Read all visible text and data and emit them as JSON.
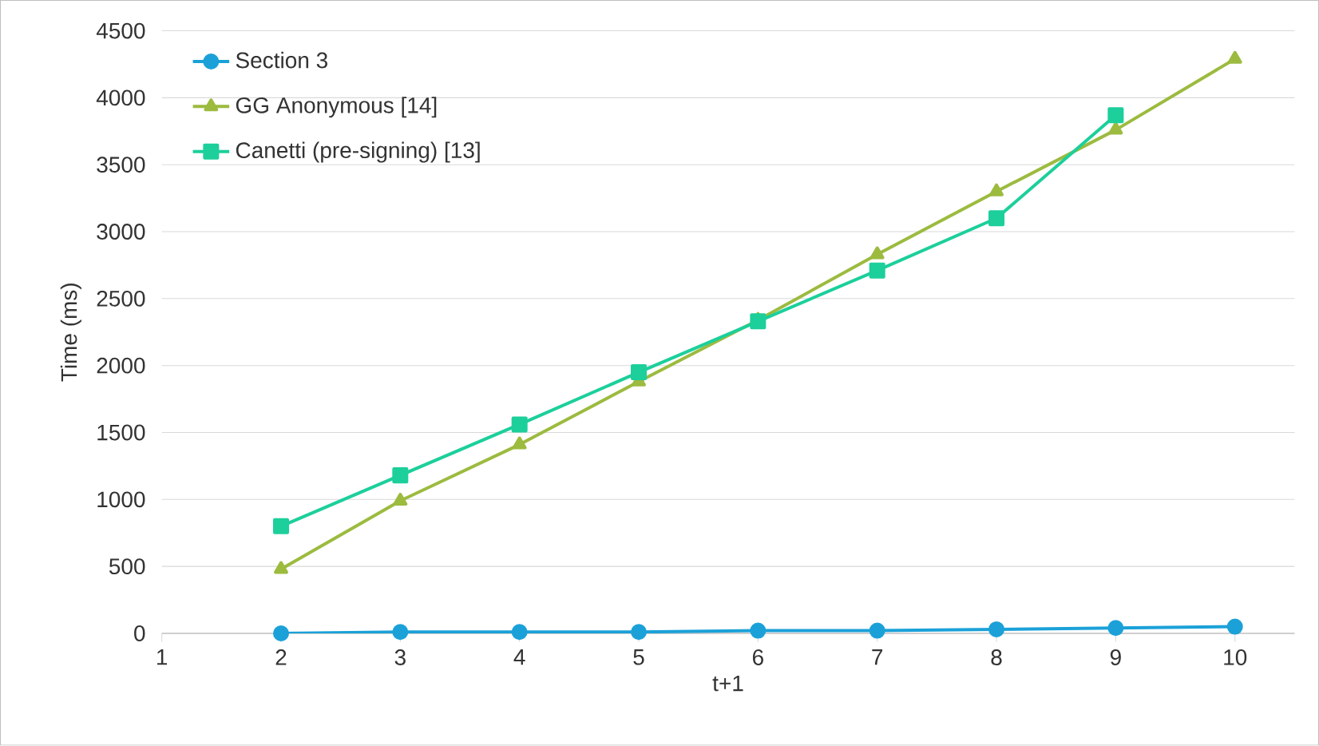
{
  "chart_data": {
    "type": "line",
    "xlabel": "t+1",
    "ylabel": "Time (ms)",
    "xlim": [
      1,
      10.5
    ],
    "xticks": [
      1,
      2,
      3,
      4,
      5,
      6,
      7,
      8,
      9,
      10
    ],
    "ylim": [
      0,
      4500
    ],
    "yticks": [
      0,
      500,
      1000,
      1500,
      2000,
      2500,
      3000,
      3500,
      4000,
      4500
    ],
    "grid": "y",
    "legend": "top left",
    "line_style": "solid",
    "series": [
      {
        "name": "Section 3",
        "color": "#1ba1d8",
        "marker": "circle",
        "x": [
          2,
          3,
          4,
          5,
          6,
          7,
          8,
          9,
          10
        ],
        "values": [
          0,
          10,
          10,
          10,
          20,
          20,
          30,
          40,
          50
        ]
      },
      {
        "name": "GG Anonymous [14]",
        "color": "#9cbb3f",
        "marker": "triangle",
        "x": [
          2,
          3,
          4,
          5,
          6,
          7,
          8,
          9,
          10
        ],
        "values": [
          480,
          990,
          1410,
          1880,
          2340,
          2830,
          3300,
          3760,
          4290
        ]
      },
      {
        "name": "Canetti (pre-signing) [13]",
        "color": "#1ccf9b",
        "marker": "square",
        "x": [
          2,
          3,
          4,
          5,
          6,
          7,
          8,
          9
        ],
        "values": [
          800,
          1180,
          1560,
          1950,
          2330,
          2710,
          3100,
          3870
        ]
      }
    ]
  }
}
